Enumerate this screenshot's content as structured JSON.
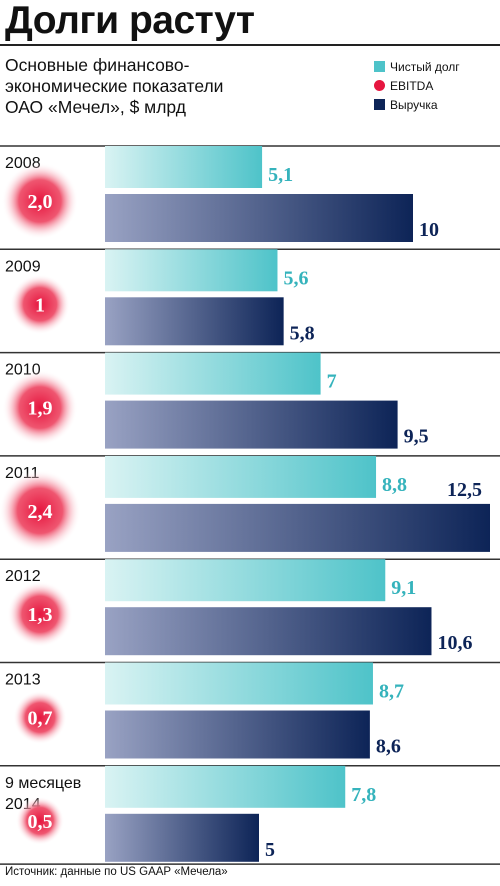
{
  "title": "Долги растут",
  "subtitle": "Основные финансово-экономические показатели ОАО «Мечел», $ млрд",
  "source": "Источник: данные по US GAAP «Мечела»",
  "colors": {
    "debt_light": "#d9f3f3",
    "debt": "#4ec3c9",
    "debt_label": "#35b3bc",
    "revenue_light": "#99a2c3",
    "revenue": "#0d2457",
    "ebitda": "#e6163f"
  },
  "chart_data": {
    "type": "bar",
    "orientation": "horizontal",
    "categories": [
      "2008",
      "2009",
      "2010",
      "2011",
      "2012",
      "2013",
      "9 месяцев 2014"
    ],
    "category_labels": [
      "2008",
      "2009",
      "2010",
      "2011",
      "2012",
      "2013",
      "9 месяцев\n2014"
    ],
    "series": [
      {
        "name": "Чистый долг",
        "values": [
          5.1,
          5.6,
          7,
          8.8,
          9.1,
          8.7,
          7.8
        ],
        "labels": [
          "5,1",
          "5,6",
          "7",
          "8,8",
          "9,1",
          "8,7",
          "7,8"
        ],
        "color": "#4ec3c9"
      },
      {
        "name": "EBITDA",
        "values": [
          2.0,
          1,
          1.9,
          2.4,
          1.3,
          0.7,
          0.5
        ],
        "labels": [
          "2,0",
          "1",
          "1,9",
          "2,4",
          "1,3",
          "0,7",
          "0,5"
        ],
        "color": "#e6163f",
        "marker": "circle"
      },
      {
        "name": "Выручка",
        "values": [
          10,
          5.8,
          9.5,
          12.5,
          10.6,
          8.6,
          5
        ],
        "labels": [
          "10",
          "5,8",
          "9,5",
          "12,5",
          "10,6",
          "8,6",
          "5"
        ],
        "color": "#0d2457"
      }
    ],
    "xlim": [
      0,
      12.5
    ],
    "grid": false,
    "legend_position": "top-right"
  }
}
